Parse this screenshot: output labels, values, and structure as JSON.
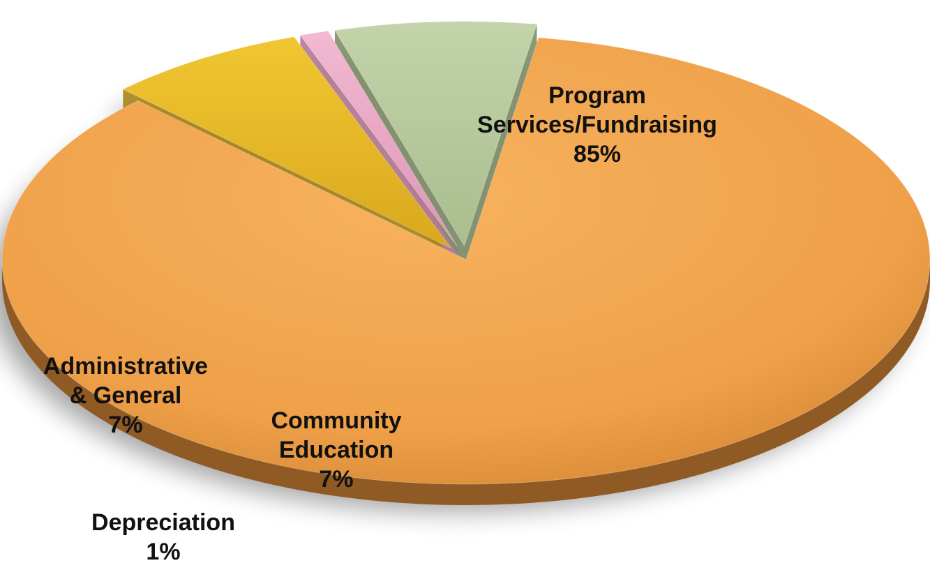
{
  "chart_data": {
    "type": "pie",
    "title": "",
    "slices": [
      {
        "name": "Program Services/Fundraising",
        "label_lines": [
          "Program",
          "Services/Fundraising"
        ],
        "value": 85,
        "value_label": "85%",
        "color": "#F2A24B",
        "exploded": false
      },
      {
        "name": "Community Education",
        "label_lines": [
          "Community",
          "Education"
        ],
        "value": 7,
        "value_label": "7%",
        "color": "#E8B824",
        "exploded": true
      },
      {
        "name": "Depreciation",
        "label_lines": [
          "Depreciation"
        ],
        "value": 1,
        "value_label": "1%",
        "color": "#E8A6C4",
        "exploded": true
      },
      {
        "name": "Administrative & General",
        "label_lines": [
          "Administrative",
          "& General"
        ],
        "value": 7,
        "value_label": "7%",
        "color": "#B4C79A",
        "exploded": true
      }
    ],
    "legend": "none",
    "data_labels": "inside-outside"
  }
}
